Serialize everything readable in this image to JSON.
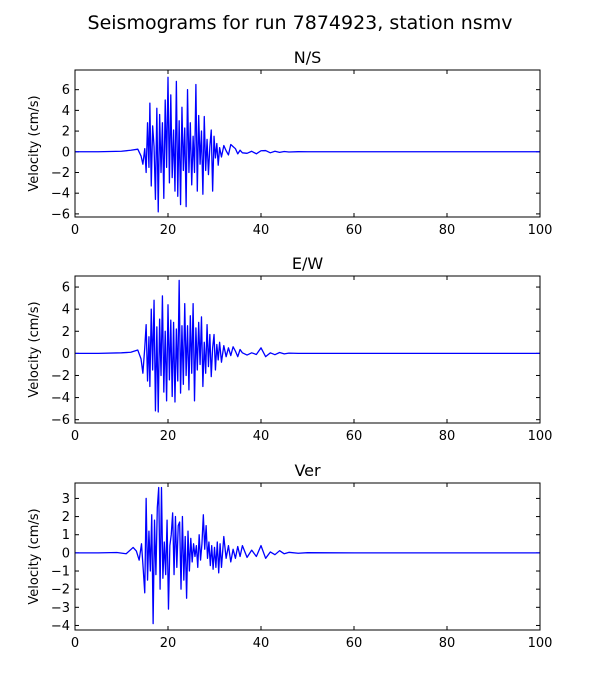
{
  "figure": {
    "suptitle": "Seismograms for run 7874923, station nsmv"
  },
  "chart_data": [
    {
      "type": "line",
      "title": "N/S",
      "xlabel": "",
      "ylabel": "Velocity (cm/s)",
      "xlim": [
        0,
        100
      ],
      "ylim": [
        -6.3,
        7.9
      ],
      "xticks": [
        0,
        20,
        40,
        60,
        80,
        100
      ],
      "yticks": [
        -6,
        -4,
        -2,
        0,
        2,
        4,
        6
      ],
      "grid": false,
      "series": [
        {
          "color": "#0000ff",
          "x": [
            0,
            5,
            10,
            12,
            13.5,
            14.2,
            14.6,
            15,
            15.3,
            15.6,
            15.9,
            16.1,
            16.4,
            16.7,
            17,
            17.3,
            17.6,
            17.9,
            18.2,
            18.5,
            18.8,
            19.1,
            19.4,
            19.7,
            20.0,
            20.3,
            20.6,
            20.9,
            21.2,
            21.5,
            21.8,
            22.1,
            22.4,
            22.7,
            23.0,
            23.3,
            23.6,
            23.9,
            24.2,
            24.5,
            24.8,
            25.1,
            25.4,
            25.7,
            26.0,
            26.3,
            26.6,
            26.9,
            27.2,
            27.5,
            27.8,
            28.1,
            28.4,
            28.7,
            29.0,
            29.3,
            29.6,
            29.9,
            30.2,
            30.5,
            30.8,
            31.1,
            31.5,
            32,
            32.5,
            33,
            33.5,
            34,
            34.5,
            35,
            35.5,
            36,
            37,
            38,
            39,
            40,
            41,
            42,
            43,
            44,
            45,
            46,
            48,
            50,
            60,
            70,
            80,
            90,
            100
          ],
          "y": [
            0,
            0,
            0.05,
            0.15,
            0.25,
            -0.4,
            -1.2,
            0.3,
            -2.0,
            2.8,
            -1.5,
            4.7,
            -3.3,
            2.5,
            0.5,
            -4.6,
            4.2,
            -5.8,
            3.6,
            -2.0,
            2.8,
            -4.5,
            5.0,
            -1.5,
            7.2,
            -3.0,
            5.5,
            -2.5,
            2.1,
            -3.8,
            6.8,
            -4.3,
            3.0,
            -5.1,
            4.3,
            -1.8,
            2.3,
            -5.3,
            6.0,
            -2.0,
            2.8,
            -3.2,
            1.5,
            -2.0,
            6.5,
            -3.8,
            3.5,
            -1.2,
            2.0,
            -4.1,
            3.4,
            -1.8,
            1.2,
            -2.2,
            0.5,
            2.1,
            -3.8,
            1.5,
            -0.6,
            0.8,
            -1.3,
            0.4,
            -0.5,
            0.6,
            0.1,
            -0.3,
            0.7,
            0.5,
            0.3,
            -0.2,
            0.15,
            -0.1,
            -0.15,
            0.05,
            -0.2,
            0.1,
            0.12,
            -0.1,
            0.05,
            -0.06,
            0.03,
            -0.02,
            0.01,
            0,
            0,
            0,
            0,
            0,
            0
          ]
        }
      ]
    },
    {
      "type": "line",
      "title": "E/W",
      "xlabel": "",
      "ylabel": "Velocity (cm/s)",
      "xlim": [
        0,
        100
      ],
      "ylim": [
        -6.3,
        7.0
      ],
      "xticks": [
        0,
        20,
        40,
        60,
        80,
        100
      ],
      "yticks": [
        -6,
        -4,
        -2,
        0,
        2,
        4,
        6
      ],
      "grid": false,
      "series": [
        {
          "color": "#0000ff",
          "x": [
            0,
            5,
            10,
            12,
            13.5,
            14.2,
            14.6,
            15,
            15.3,
            15.6,
            15.9,
            16.1,
            16.4,
            16.7,
            17,
            17.3,
            17.6,
            17.9,
            18.2,
            18.5,
            18.8,
            19.1,
            19.4,
            19.7,
            20.0,
            20.3,
            20.6,
            20.9,
            21.2,
            21.5,
            21.8,
            22.1,
            22.4,
            22.7,
            23.0,
            23.3,
            23.6,
            23.9,
            24.2,
            24.5,
            24.8,
            25.1,
            25.4,
            25.7,
            26.0,
            26.3,
            26.6,
            26.9,
            27.2,
            27.5,
            27.8,
            28.1,
            28.4,
            28.7,
            29.0,
            29.3,
            29.6,
            29.9,
            30.2,
            30.5,
            30.8,
            31.1,
            31.5,
            32,
            32.5,
            33,
            33.5,
            34,
            34.5,
            35,
            35.5,
            36,
            37,
            38,
            39,
            40,
            41,
            42,
            43,
            44,
            45,
            46,
            48,
            50,
            60,
            70,
            80,
            90,
            100
          ],
          "y": [
            0,
            0,
            0.05,
            0.1,
            0.3,
            -0.5,
            -1.8,
            0.5,
            2.6,
            -2.5,
            1.5,
            -3.0,
            4.0,
            -1.5,
            4.8,
            -5.2,
            2.4,
            -5.3,
            3.1,
            -2.0,
            5.2,
            -3.5,
            2.0,
            -4.3,
            4.4,
            -2.4,
            3.0,
            -3.9,
            2.8,
            -4.4,
            2.2,
            -2.5,
            6.6,
            -3.6,
            2.5,
            -2.8,
            4.5,
            -2.0,
            2.5,
            -3.3,
            3.4,
            -1.8,
            4.5,
            -4.3,
            2.3,
            -1.5,
            2.8,
            -1.0,
            3.3,
            -3.0,
            1.0,
            -1.8,
            2.6,
            -1.2,
            1.7,
            -2.1,
            0.5,
            1.7,
            -1.5,
            0.8,
            -0.6,
            1.0,
            -0.8,
            0.7,
            -0.3,
            0.5,
            -0.2,
            0.6,
            0.2,
            -0.3,
            0.35,
            0.05,
            -0.15,
            0.05,
            -0.1,
            0.5,
            -0.3,
            0.05,
            -0.12,
            0.08,
            -0.05,
            0.02,
            0,
            0,
            0,
            0,
            0,
            0,
            0
          ]
        }
      ]
    },
    {
      "type": "line",
      "title": "Ver",
      "xlabel": "",
      "ylabel": "Velocity (cm/s)",
      "xlim": [
        0,
        100
      ],
      "ylim": [
        -4.25,
        3.85
      ],
      "xticks": [
        0,
        20,
        40,
        60,
        80,
        100
      ],
      "yticks": [
        -4,
        -3,
        -2,
        -1,
        0,
        1,
        2,
        3
      ],
      "grid": false,
      "series": [
        {
          "color": "#0000ff",
          "x": [
            0,
            5,
            9,
            11,
            12.5,
            13.2,
            13.8,
            14.3,
            14.7,
            15,
            15.3,
            15.6,
            15.9,
            16.2,
            16.5,
            16.8,
            17.1,
            17.4,
            17.7,
            18.0,
            18.3,
            18.6,
            18.9,
            19.2,
            19.5,
            19.8,
            20.1,
            20.4,
            20.7,
            21.0,
            21.3,
            21.6,
            21.9,
            22.2,
            22.5,
            22.8,
            23.1,
            23.4,
            23.7,
            24.0,
            24.3,
            24.6,
            24.9,
            25.2,
            25.5,
            25.8,
            26.1,
            26.4,
            26.7,
            27.0,
            27.3,
            27.6,
            27.9,
            28.2,
            28.5,
            28.8,
            29.1,
            29.4,
            29.7,
            30.0,
            30.3,
            30.6,
            30.9,
            31.2,
            31.5,
            32,
            32.5,
            33,
            33.5,
            34,
            34.5,
            35,
            35.5,
            36,
            37,
            38,
            39,
            40,
            41,
            42,
            43,
            44,
            45,
            46,
            48,
            50,
            60,
            70,
            80,
            90,
            100
          ],
          "y": [
            0,
            0,
            0.02,
            -0.05,
            0.3,
            0.1,
            -0.4,
            0.5,
            -1.0,
            -2.2,
            3.0,
            -1.5,
            1.2,
            -1.0,
            2.1,
            -3.9,
            1.8,
            -1.2,
            2.5,
            3.6,
            -2.0,
            3.6,
            -1.4,
            0.6,
            -1.2,
            1.8,
            -3.1,
            0.4,
            1.0,
            2.2,
            -1.2,
            2.0,
            -0.8,
            1.5,
            1.7,
            -2.0,
            2.0,
            -1.5,
            0.9,
            -2.5,
            1.2,
            -1.0,
            0.8,
            -0.5,
            0.5,
            -0.2,
            0.4,
            -0.8,
            1.0,
            -0.4,
            0.5,
            2.1,
            0.2,
            1.5,
            -0.3,
            0.6,
            -0.7,
            0.4,
            -0.9,
            0.3,
            -0.8,
            0.6,
            -1.1,
            0.5,
            -0.8,
            0.9,
            -0.3,
            0.4,
            -0.5,
            0.2,
            -0.3,
            0.35,
            -0.2,
            0.4,
            -0.25,
            0.15,
            -0.2,
            0.4,
            -0.3,
            0.05,
            -0.1,
            0.12,
            -0.05,
            0.03,
            -0.02,
            0.01,
            0,
            0,
            0,
            0,
            0
          ]
        }
      ]
    }
  ]
}
